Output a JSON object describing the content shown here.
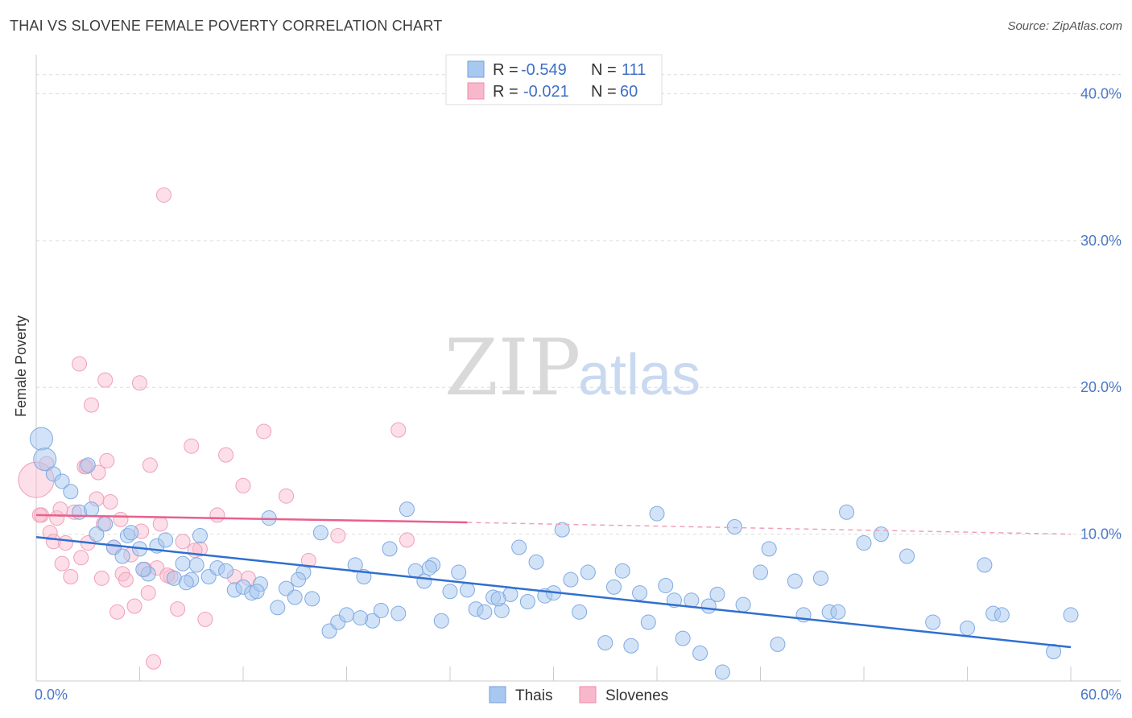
{
  "header": {
    "title": "THAI VS SLOVENE FEMALE POVERTY CORRELATION CHART",
    "source": "Source: ZipAtlas.com"
  },
  "watermark": {
    "zip": "ZIP",
    "atlas": "atlas"
  },
  "legend": {
    "r_label": "R =",
    "n_label": "N =",
    "entries": [
      {
        "r": "-0.549",
        "n": "111",
        "color": "#a8c8f0"
      },
      {
        "r": "-0.021",
        "n": "60",
        "color": "#f8b8cc"
      }
    ]
  },
  "colors": {
    "thais": "#6fa0e0",
    "thais_line": "#2f6fcf",
    "slovenes": "#f08aa8",
    "slovenes_line": "#e8608c",
    "tick": "#4a78c8"
  },
  "chart_data": {
    "type": "scatter",
    "title": "THAI VS SLOVENE FEMALE POVERTY CORRELATION CHART",
    "xlabel": "",
    "ylabel": "Female Poverty",
    "xlim": [
      0,
      60
    ],
    "ylim": [
      0,
      42
    ],
    "x_ticks": [
      "0.0%",
      "60.0%"
    ],
    "y_ticks": [
      {
        "value": 10,
        "label": "10.0%"
      },
      {
        "value": 20,
        "label": "20.0%"
      },
      {
        "value": 30,
        "label": "30.0%"
      },
      {
        "value": 40,
        "label": "40.0%"
      }
    ],
    "grid": true,
    "legend_position": "top-center",
    "series": [
      {
        "name": "Thais",
        "r": -0.549,
        "n": 111,
        "trend": {
          "x0": 0,
          "y0": 9.8,
          "x1": 60,
          "y1": 2.3
        },
        "points": [
          [
            0.3,
            16.5
          ],
          [
            0.5,
            15.1
          ],
          [
            1.0,
            14.1
          ],
          [
            1.5,
            13.6
          ],
          [
            2.0,
            12.9
          ],
          [
            2.5,
            11.5
          ],
          [
            3.0,
            14.7
          ],
          [
            3.5,
            10.0
          ],
          [
            4.0,
            10.7
          ],
          [
            4.5,
            9.1
          ],
          [
            5.0,
            8.5
          ],
          [
            5.3,
            9.9
          ],
          [
            5.5,
            10.1
          ],
          [
            6.0,
            9.0
          ],
          [
            6.5,
            7.3
          ],
          [
            7.0,
            9.2
          ],
          [
            7.5,
            9.6
          ],
          [
            8.0,
            7.0
          ],
          [
            8.5,
            8.0
          ],
          [
            9.0,
            6.9
          ],
          [
            9.3,
            7.9
          ],
          [
            9.5,
            9.9
          ],
          [
            10.0,
            7.1
          ],
          [
            10.5,
            7.7
          ],
          [
            11.0,
            7.5
          ],
          [
            11.5,
            6.2
          ],
          [
            12.0,
            6.4
          ],
          [
            12.5,
            6.0
          ],
          [
            13.0,
            6.6
          ],
          [
            13.5,
            11.1
          ],
          [
            14.0,
            5.0
          ],
          [
            14.5,
            6.3
          ],
          [
            15.0,
            5.7
          ],
          [
            15.5,
            7.4
          ],
          [
            16.0,
            5.6
          ],
          [
            16.5,
            10.1
          ],
          [
            17.0,
            3.4
          ],
          [
            17.5,
            4.0
          ],
          [
            18.0,
            4.5
          ],
          [
            18.5,
            7.9
          ],
          [
            19.0,
            7.1
          ],
          [
            19.5,
            4.1
          ],
          [
            20.0,
            4.8
          ],
          [
            20.5,
            9.0
          ],
          [
            21.0,
            4.6
          ],
          [
            21.5,
            11.7
          ],
          [
            22.0,
            7.5
          ],
          [
            22.5,
            6.8
          ],
          [
            23.0,
            7.9
          ],
          [
            23.5,
            4.1
          ],
          [
            24.0,
            6.1
          ],
          [
            24.5,
            7.4
          ],
          [
            25.0,
            6.2
          ],
          [
            25.5,
            4.9
          ],
          [
            26.0,
            4.7
          ],
          [
            26.5,
            5.7
          ],
          [
            27.0,
            4.8
          ],
          [
            27.5,
            5.9
          ],
          [
            28.0,
            9.1
          ],
          [
            28.5,
            5.4
          ],
          [
            29.0,
            8.1
          ],
          [
            29.5,
            5.8
          ],
          [
            30.0,
            6.0
          ],
          [
            30.5,
            10.3
          ],
          [
            31.0,
            6.9
          ],
          [
            31.5,
            4.7
          ],
          [
            32.0,
            7.4
          ],
          [
            33.0,
            2.6
          ],
          [
            33.5,
            6.4
          ],
          [
            34.0,
            7.5
          ],
          [
            34.5,
            2.4
          ],
          [
            35.0,
            6.0
          ],
          [
            35.5,
            4.0
          ],
          [
            36.0,
            11.4
          ],
          [
            36.5,
            6.5
          ],
          [
            37.0,
            5.5
          ],
          [
            37.5,
            2.9
          ],
          [
            38.0,
            5.5
          ],
          [
            38.5,
            1.9
          ],
          [
            39.0,
            5.1
          ],
          [
            39.5,
            5.9
          ],
          [
            39.8,
            0.6
          ],
          [
            40.5,
            10.5
          ],
          [
            41.0,
            5.2
          ],
          [
            42.0,
            7.4
          ],
          [
            42.5,
            9.0
          ],
          [
            43.0,
            2.5
          ],
          [
            44.5,
            4.5
          ],
          [
            45.5,
            7.0
          ],
          [
            46.0,
            4.7
          ],
          [
            46.5,
            4.7
          ],
          [
            47.0,
            11.5
          ],
          [
            49.0,
            10.0
          ],
          [
            50.5,
            8.5
          ],
          [
            52.0,
            4.0
          ],
          [
            54.0,
            3.6
          ],
          [
            55.0,
            7.9
          ],
          [
            55.5,
            4.6
          ],
          [
            56.0,
            4.5
          ],
          [
            59.0,
            2.0
          ],
          [
            60.0,
            4.5
          ],
          [
            3.2,
            11.7
          ],
          [
            6.2,
            7.6
          ],
          [
            8.7,
            6.7
          ],
          [
            12.8,
            6.1
          ],
          [
            15.2,
            6.9
          ],
          [
            18.8,
            4.3
          ],
          [
            22.8,
            7.7
          ],
          [
            26.8,
            5.6
          ],
          [
            44.0,
            6.8
          ],
          [
            48.0,
            9.4
          ]
        ]
      },
      {
        "name": "Slovenes",
        "r": -0.021,
        "n": 60,
        "trend": {
          "x0": 0,
          "y0": 11.3,
          "x1": 25,
          "y1": 10.8,
          "dash_to_x": 60,
          "dash_to_y": 10.0
        },
        "points": [
          [
            0.0,
            13.7
          ],
          [
            0.3,
            11.3
          ],
          [
            0.6,
            14.8
          ],
          [
            0.8,
            10.1
          ],
          [
            1.0,
            9.5
          ],
          [
            1.2,
            11.1
          ],
          [
            1.5,
            8.0
          ],
          [
            1.7,
            9.4
          ],
          [
            2.0,
            7.1
          ],
          [
            2.2,
            11.5
          ],
          [
            2.5,
            21.6
          ],
          [
            2.6,
            8.4
          ],
          [
            2.8,
            14.6
          ],
          [
            3.0,
            9.4
          ],
          [
            3.2,
            18.8
          ],
          [
            3.5,
            12.4
          ],
          [
            3.8,
            7.0
          ],
          [
            3.9,
            10.7
          ],
          [
            4.0,
            20.5
          ],
          [
            4.1,
            15.0
          ],
          [
            4.3,
            12.2
          ],
          [
            4.5,
            9.1
          ],
          [
            4.7,
            4.7
          ],
          [
            5.0,
            7.3
          ],
          [
            5.2,
            6.9
          ],
          [
            5.5,
            8.6
          ],
          [
            5.7,
            5.1
          ],
          [
            6.0,
            20.3
          ],
          [
            6.3,
            7.6
          ],
          [
            6.5,
            6.0
          ],
          [
            6.6,
            14.7
          ],
          [
            6.8,
            1.3
          ],
          [
            7.0,
            7.7
          ],
          [
            7.2,
            10.7
          ],
          [
            7.4,
            33.1
          ],
          [
            7.8,
            7.1
          ],
          [
            8.2,
            4.9
          ],
          [
            8.5,
            9.5
          ],
          [
            9.0,
            16.0
          ],
          [
            9.5,
            9.0
          ],
          [
            9.8,
            4.2
          ],
          [
            10.5,
            11.3
          ],
          [
            11.0,
            15.4
          ],
          [
            11.5,
            7.1
          ],
          [
            12.0,
            13.3
          ],
          [
            13.2,
            17.0
          ],
          [
            14.5,
            12.6
          ],
          [
            17.5,
            9.9
          ],
          [
            21.0,
            17.1
          ],
          [
            21.5,
            9.6
          ],
          [
            1.4,
            11.7
          ],
          [
            2.9,
            14.6
          ],
          [
            3.6,
            14.2
          ],
          [
            4.9,
            11.0
          ],
          [
            6.1,
            10.2
          ],
          [
            7.6,
            7.2
          ],
          [
            9.2,
            8.9
          ],
          [
            12.3,
            7.0
          ],
          [
            15.8,
            8.2
          ],
          [
            0.2,
            11.3
          ]
        ]
      }
    ]
  },
  "bottom_legend": [
    {
      "label": "Thais",
      "color": "#a8c8f0"
    },
    {
      "label": "Slovenes",
      "color": "#f8b8cc"
    }
  ]
}
